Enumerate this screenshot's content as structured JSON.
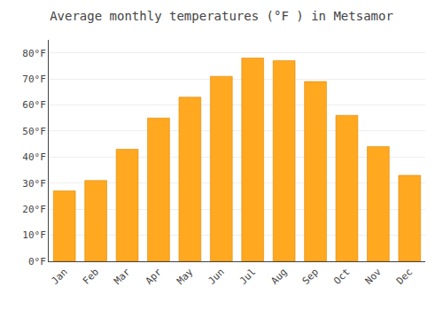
{
  "chart_data": {
    "type": "bar",
    "title": "Average monthly temperatures (°F ) in Metsamor",
    "categories": [
      "Jan",
      "Feb",
      "Mar",
      "Apr",
      "May",
      "Jun",
      "Jul",
      "Aug",
      "Sep",
      "Oct",
      "Nov",
      "Dec"
    ],
    "values": [
      27,
      31,
      43,
      55,
      63,
      71,
      78,
      77,
      69,
      56,
      44,
      33
    ],
    "color": "#FFA820",
    "ylim": [
      0,
      85
    ],
    "yticks": [
      {
        "value": 0,
        "label": "0°F"
      },
      {
        "value": 10,
        "label": "10°F"
      },
      {
        "value": 20,
        "label": "20°F"
      },
      {
        "value": 30,
        "label": "30°F"
      },
      {
        "value": 40,
        "label": "40°F"
      },
      {
        "value": 50,
        "label": "50°F"
      },
      {
        "value": 60,
        "label": "60°F"
      },
      {
        "value": 70,
        "label": "70°F"
      },
      {
        "value": 80,
        "label": "80°F"
      }
    ],
    "grid": true
  }
}
